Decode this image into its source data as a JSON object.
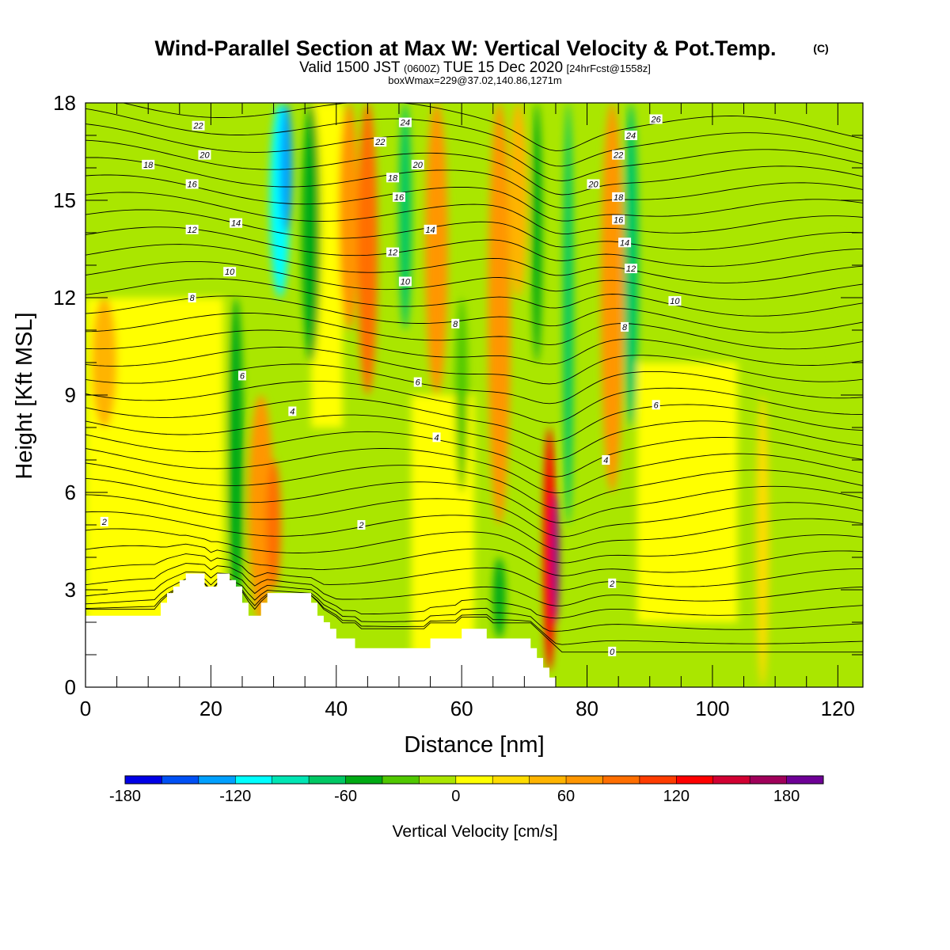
{
  "header": {
    "title": "Wind-Parallel Section at Max W: Vertical Velocity & Pot.Temp.",
    "copyright": "(C)",
    "valid_prefix": "Valid 1500 JST",
    "valid_utc": "(0600Z)",
    "valid_date": "TUE 15 Dec 2020",
    "forecast": "[24hrFcst@1558z]",
    "boxinfo": "boxWmax=229@37.02,140.86,1271m"
  },
  "chart_data": {
    "type": "heatmap",
    "xlabel": "Distance [nm]",
    "ylabel": "Height [Kft MSL]",
    "xlim": [
      0,
      124
    ],
    "ylim": [
      0,
      18
    ],
    "xticks": [
      0,
      20,
      40,
      60,
      80,
      100,
      120
    ],
    "yticks": [
      0,
      3,
      6,
      9,
      12,
      15,
      18
    ],
    "colorbar": {
      "label": "Vertical Velocity [cm/s]",
      "range": [
        -180,
        200
      ],
      "step": 20,
      "tick_labels": [
        "-180",
        "-120",
        "-60",
        "0",
        "60",
        "120",
        "180"
      ],
      "tick_values": [
        -180,
        -120,
        -60,
        0,
        60,
        120,
        180
      ],
      "colors": [
        "#0000e6",
        "#0050f5",
        "#00a0ff",
        "#00ffff",
        "#00e6b4",
        "#00c864",
        "#00aa14",
        "#50c800",
        "#aae600",
        "#ffff00",
        "#ffdc00",
        "#ffb400",
        "#ff9600",
        "#ff6e00",
        "#ff3c00",
        "#ff0000",
        "#d20032",
        "#a0005a",
        "#6e0096"
      ]
    },
    "terrain": [
      [
        0,
        2.2
      ],
      [
        12,
        2.2
      ],
      [
        12,
        2.6
      ],
      [
        13,
        2.6
      ],
      [
        13,
        2.9
      ],
      [
        14,
        2.9
      ],
      [
        14,
        3.1
      ],
      [
        15,
        3.1
      ],
      [
        15,
        3.3
      ],
      [
        16,
        3.3
      ],
      [
        16,
        3.5
      ],
      [
        19,
        3.5
      ],
      [
        19,
        3.1
      ],
      [
        21,
        3.1
      ],
      [
        21,
        3.5
      ],
      [
        23,
        3.5
      ],
      [
        23,
        3.3
      ],
      [
        24,
        3.3
      ],
      [
        24,
        3.1
      ],
      [
        25,
        3.1
      ],
      [
        25,
        2.6
      ],
      [
        26,
        2.6
      ],
      [
        26,
        2.2
      ],
      [
        28,
        2.2
      ],
      [
        28,
        2.6
      ],
      [
        29,
        2.6
      ],
      [
        29,
        2.9
      ],
      [
        36,
        2.9
      ],
      [
        36,
        2.6
      ],
      [
        37,
        2.6
      ],
      [
        37,
        2.2
      ],
      [
        38,
        2.2
      ],
      [
        38,
        2.0
      ],
      [
        39,
        2.0
      ],
      [
        39,
        1.8
      ],
      [
        40,
        1.8
      ],
      [
        40,
        1.5
      ],
      [
        43,
        1.5
      ],
      [
        43,
        1.2
      ],
      [
        55,
        1.2
      ],
      [
        55,
        1.5
      ],
      [
        60,
        1.5
      ],
      [
        60,
        1.8
      ],
      [
        64,
        1.8
      ],
      [
        64,
        1.5
      ],
      [
        71,
        1.5
      ],
      [
        71,
        1.2
      ],
      [
        72,
        1.2
      ],
      [
        72,
        0.9
      ],
      [
        73,
        0.9
      ],
      [
        73,
        0.6
      ],
      [
        74,
        0.6
      ],
      [
        74,
        0.3
      ],
      [
        75,
        0.3
      ],
      [
        75,
        0.0
      ],
      [
        0,
        0.0
      ]
    ],
    "vv_features": [
      {
        "x": 31,
        "z_min": 12,
        "z_max": 18,
        "w": 1.6,
        "value": -120
      },
      {
        "x": 32,
        "z_min": 14,
        "z_max": 18,
        "w": 1.0,
        "value": -140
      },
      {
        "x": 24,
        "z_min": 2,
        "z_max": 12,
        "w": 1.2,
        "value": -60
      },
      {
        "x": 28,
        "z_min": 2,
        "z_max": 9,
        "w": 2.0,
        "value": 60
      },
      {
        "x": 30,
        "z_min": 3,
        "z_max": 7,
        "w": 1.2,
        "value": 80
      },
      {
        "x": 36,
        "z_min": 10,
        "z_max": 18,
        "w": 1.5,
        "value": -60
      },
      {
        "x": 42,
        "z_min": 11,
        "z_max": 18,
        "w": 1.6,
        "value": 60
      },
      {
        "x": 45,
        "z_min": 9,
        "z_max": 18,
        "w": 1.6,
        "value": 80
      },
      {
        "x": 51,
        "z_min": 11,
        "z_max": 18,
        "w": 1.0,
        "value": -80
      },
      {
        "x": 56,
        "z_min": 9,
        "z_max": 18,
        "w": 1.8,
        "value": 60
      },
      {
        "x": 60,
        "z_min": 6,
        "z_max": 12,
        "w": 1.0,
        "value": -40
      },
      {
        "x": 66,
        "z_min": 5,
        "z_max": 18,
        "w": 1.8,
        "value": 60
      },
      {
        "x": 69,
        "z_min": 12,
        "z_max": 18,
        "w": 1.4,
        "value": 40
      },
      {
        "x": 72,
        "z_min": 10,
        "z_max": 18,
        "w": 0.8,
        "value": -60
      },
      {
        "x": 74,
        "z_min": 0.5,
        "z_max": 8,
        "w": 1.0,
        "value": 120
      },
      {
        "x": 75,
        "z_min": 2,
        "z_max": 6,
        "w": 0.5,
        "value": 200
      },
      {
        "x": 77,
        "z_min": 5,
        "z_max": 18,
        "w": 0.8,
        "value": -80
      },
      {
        "x": 84,
        "z_min": 6,
        "z_max": 18,
        "w": 1.8,
        "value": 60
      },
      {
        "x": 87,
        "z_min": 8,
        "z_max": 18,
        "w": 1.2,
        "value": -80
      },
      {
        "x": 66,
        "z_min": 1.5,
        "z_max": 4,
        "w": 1.0,
        "value": -60
      },
      {
        "x": 3,
        "z_min": 8,
        "z_max": 12,
        "w": 2.0,
        "value": 40
      },
      {
        "x": 108,
        "z_min": 0,
        "z_max": 9,
        "w": 1.0,
        "value": 20
      },
      {
        "x": 120,
        "z_min": 10,
        "z_max": 14,
        "w": 1.2,
        "value": -20
      }
    ],
    "contour_labels": [
      {
        "text": "22",
        "x": 18,
        "z": 17.3
      },
      {
        "text": "20",
        "x": 19,
        "z": 16.4
      },
      {
        "text": "18",
        "x": 10,
        "z": 16.1
      },
      {
        "text": "16",
        "x": 17,
        "z": 15.5
      },
      {
        "text": "12",
        "x": 17,
        "z": 14.1
      },
      {
        "text": "14",
        "x": 24,
        "z": 14.3
      },
      {
        "text": "10",
        "x": 23,
        "z": 12.8
      },
      {
        "text": "8",
        "x": 17,
        "z": 12.0
      },
      {
        "text": "6",
        "x": 25,
        "z": 9.6
      },
      {
        "text": "4",
        "x": 33,
        "z": 8.5
      },
      {
        "text": "2",
        "x": 3,
        "z": 5.1
      },
      {
        "text": "2",
        "x": 44,
        "z": 5.0
      },
      {
        "text": "24",
        "x": 51,
        "z": 17.4
      },
      {
        "text": "22",
        "x": 47,
        "z": 16.8
      },
      {
        "text": "20",
        "x": 53,
        "z": 16.1
      },
      {
        "text": "18",
        "x": 49,
        "z": 15.7
      },
      {
        "text": "16",
        "x": 50,
        "z": 15.1
      },
      {
        "text": "14",
        "x": 55,
        "z": 14.1
      },
      {
        "text": "12",
        "x": 49,
        "z": 13.4
      },
      {
        "text": "10",
        "x": 51,
        "z": 12.5
      },
      {
        "text": "8",
        "x": 59,
        "z": 11.2
      },
      {
        "text": "6",
        "x": 53,
        "z": 9.4
      },
      {
        "text": "4",
        "x": 56,
        "z": 7.7
      },
      {
        "text": "26",
        "x": 91,
        "z": 17.5
      },
      {
        "text": "24",
        "x": 87,
        "z": 17.0
      },
      {
        "text": "22",
        "x": 85,
        "z": 16.4
      },
      {
        "text": "20",
        "x": 81,
        "z": 15.5
      },
      {
        "text": "18",
        "x": 85,
        "z": 15.1
      },
      {
        "text": "16",
        "x": 85,
        "z": 14.4
      },
      {
        "text": "14",
        "x": 86,
        "z": 13.7
      },
      {
        "text": "12",
        "x": 87,
        "z": 12.9
      },
      {
        "text": "10",
        "x": 94,
        "z": 11.9
      },
      {
        "text": "8",
        "x": 86,
        "z": 11.1
      },
      {
        "text": "6",
        "x": 91,
        "z": 8.7
      },
      {
        "text": "4",
        "x": 83,
        "z": 7.0
      },
      {
        "text": "2",
        "x": 84,
        "z": 3.2
      },
      {
        "text": "0",
        "x": 84,
        "z": 1.1
      }
    ]
  }
}
